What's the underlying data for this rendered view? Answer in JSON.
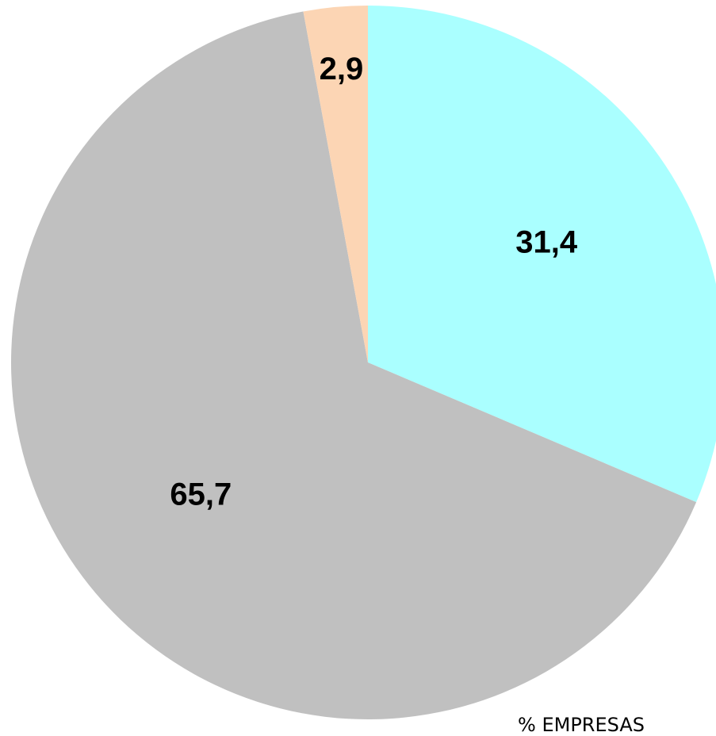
{
  "chart_data": {
    "type": "pie",
    "title": "% EMPRESAS",
    "values": [
      31.4,
      65.7,
      2.9
    ],
    "value_labels": [
      "31,4",
      "65,7",
      "2,9"
    ],
    "colors": [
      "#aaffff",
      "#c0c0c0",
      "#fcd5b4"
    ]
  }
}
